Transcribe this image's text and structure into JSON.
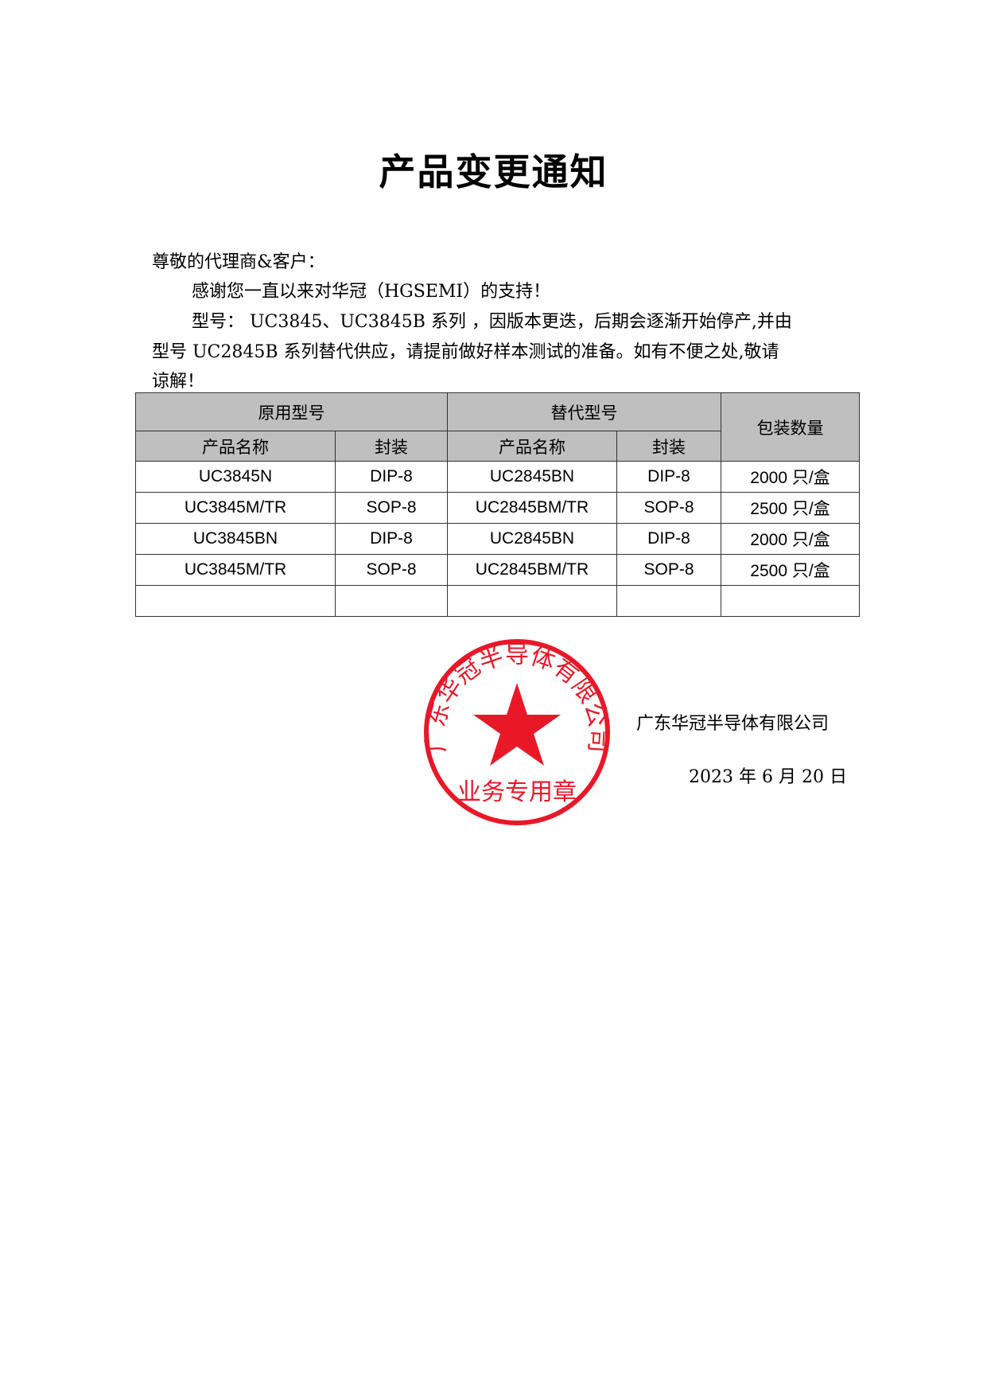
{
  "title": "产品变更通知",
  "body": {
    "greeting": "尊敬的代理商&客户：",
    "thanks": "感谢您一直以来对华冠（HGSEMI）的支持！",
    "notice_line1": "型号： UC3845、UC3845B 系列 ，因版本更迭，后期会逐渐开始停产,并由",
    "notice_line2": "型号 UC2845B 系列替代供应，请提前做好样本测试的准备。如有不便之处,敬请",
    "notice_line3": "谅解！"
  },
  "table": {
    "group_original": "原用型号",
    "group_replacement": "替代型号",
    "col_quantity": "包装数量",
    "col_name": "产品名称",
    "col_package": "封装",
    "rows": [
      {
        "orig_name": "UC3845N",
        "orig_pkg": "DIP-8",
        "new_name": "UC2845BN",
        "new_pkg": "DIP-8",
        "qty": "2000 只/盒"
      },
      {
        "orig_name": "UC3845M/TR",
        "orig_pkg": "SOP-8",
        "new_name": "UC2845BM/TR",
        "new_pkg": "SOP-8",
        "qty": "2500 只/盒"
      },
      {
        "orig_name": "UC3845BN",
        "orig_pkg": "DIP-8",
        "new_name": "UC2845BN",
        "new_pkg": "DIP-8",
        "qty": "2000 只/盒"
      },
      {
        "orig_name": "UC3845M/TR",
        "orig_pkg": "SOP-8",
        "new_name": "UC2845BM/TR",
        "new_pkg": "SOP-8",
        "qty": "2500 只/盒"
      },
      {
        "orig_name": "",
        "orig_pkg": "",
        "new_name": "",
        "new_pkg": "",
        "qty": ""
      }
    ]
  },
  "signature": {
    "company": "广东华冠半导体有限公司",
    "date": "2023 年 6 月 20 日"
  },
  "stamp": {
    "ring_text": "广东华冠半导体有限公司",
    "bottom_text": "业务专用章",
    "color": "#e60012"
  }
}
